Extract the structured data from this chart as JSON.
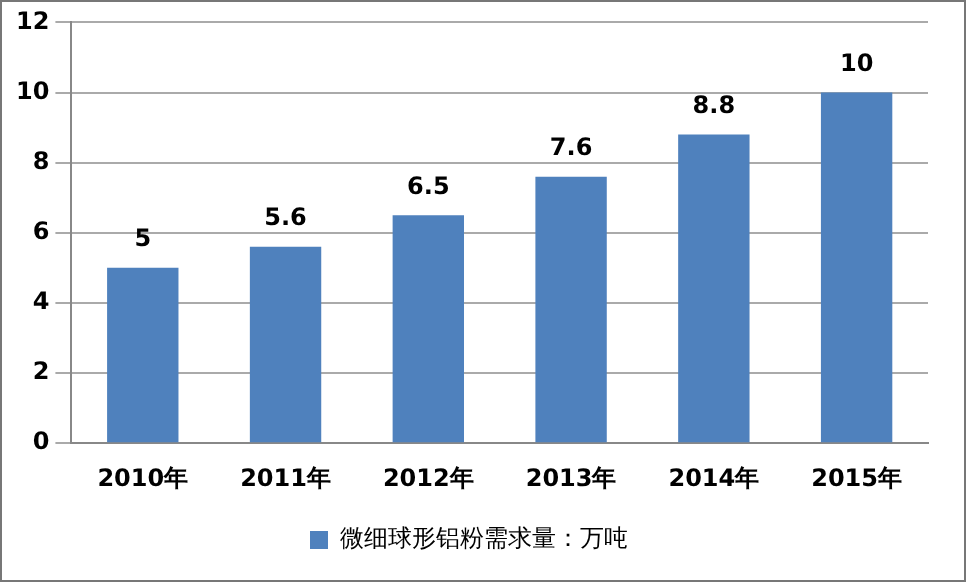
{
  "chart_data": {
    "type": "bar",
    "categories": [
      "2010年",
      "2011年",
      "2012年",
      "2013年",
      "2014年",
      "2015年"
    ],
    "series": [
      {
        "name": "微细球形铝粉需求量：万吨",
        "color": "#4f81bd",
        "values": [
          5,
          5.6,
          6.5,
          7.6,
          8.8,
          10
        ]
      }
    ],
    "ylim": [
      0,
      12
    ],
    "yticks": [
      0,
      2,
      4,
      6,
      8,
      10,
      12
    ],
    "grid": "y",
    "legend": "bottom",
    "data_labels": true
  }
}
